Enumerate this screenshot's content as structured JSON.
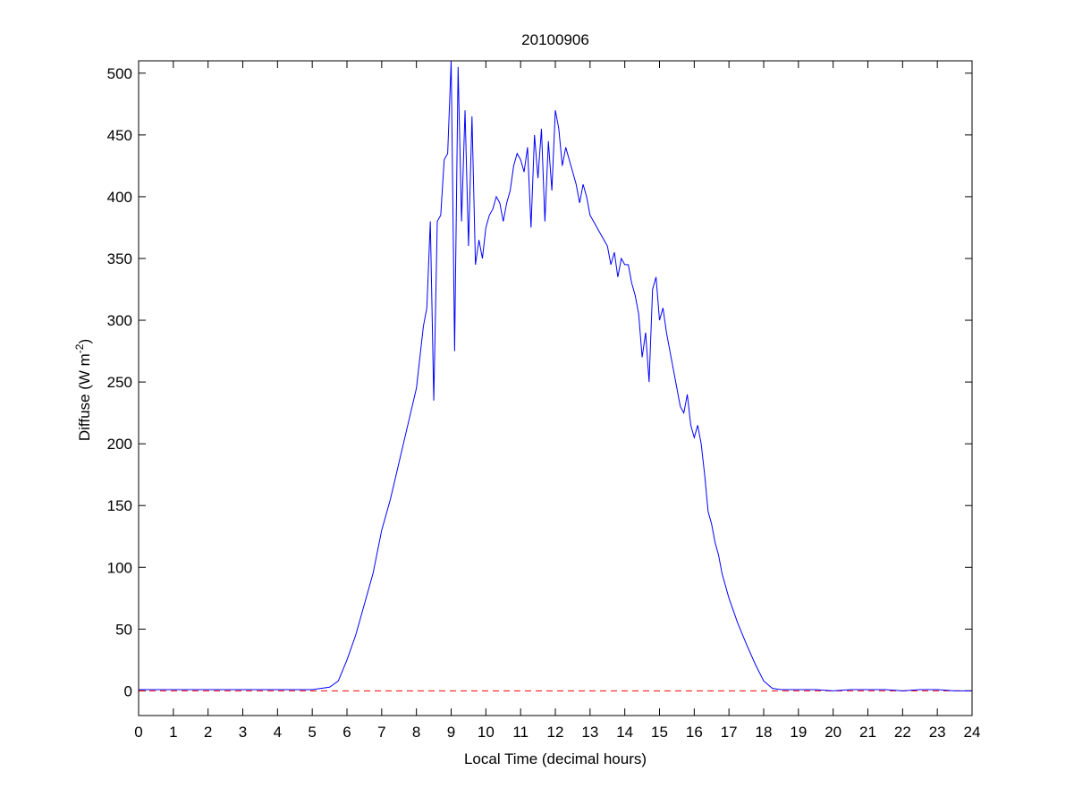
{
  "chart_data": {
    "type": "line",
    "title": "20100906",
    "xlabel": "Local Time (decimal hours)",
    "ylabel": {
      "text": "Diffuse (W m",
      "superscript": "-2",
      "suffix": ")"
    },
    "x": [
      0,
      0.5,
      1,
      1.5,
      2,
      2.5,
      3,
      3.5,
      4,
      4.5,
      5,
      5.5,
      5.75,
      6,
      6.25,
      6.5,
      6.75,
      7,
      7.25,
      7.5,
      7.75,
      8,
      8.1,
      8.2,
      8.3,
      8.4,
      8.5,
      8.6,
      8.7,
      8.8,
      8.9,
      9,
      9.1,
      9.2,
      9.3,
      9.4,
      9.5,
      9.6,
      9.7,
      9.8,
      9.9,
      10,
      10.1,
      10.2,
      10.3,
      10.4,
      10.5,
      10.6,
      10.7,
      10.8,
      10.9,
      11,
      11.1,
      11.2,
      11.3,
      11.4,
      11.5,
      11.6,
      11.7,
      11.8,
      11.9,
      12,
      12.1,
      12.2,
      12.3,
      12.4,
      12.5,
      12.6,
      12.7,
      12.8,
      12.9,
      13,
      13.1,
      13.2,
      13.3,
      13.4,
      13.5,
      13.6,
      13.7,
      13.8,
      13.9,
      14,
      14.1,
      14.2,
      14.3,
      14.4,
      14.5,
      14.6,
      14.7,
      14.8,
      14.9,
      15,
      15.1,
      15.2,
      15.3,
      15.4,
      15.5,
      15.6,
      15.7,
      15.8,
      15.9,
      16,
      16.1,
      16.2,
      16.3,
      16.4,
      16.5,
      16.6,
      16.7,
      16.8,
      16.9,
      17,
      17.25,
      17.5,
      17.75,
      18,
      18.25,
      18.5,
      19,
      19.5,
      20,
      20.5,
      21,
      21.5,
      22,
      22.5,
      23,
      23.5,
      24
    ],
    "series": [
      {
        "color": "#0000ff",
        "values": [
          1,
          1,
          1,
          1,
          1,
          1,
          1,
          1,
          1,
          1,
          1,
          3,
          8,
          25,
          45,
          70,
          95,
          130,
          155,
          185,
          215,
          245,
          270,
          295,
          310,
          380,
          235,
          380,
          385,
          430,
          435,
          510,
          275,
          505,
          380,
          470,
          360,
          465,
          345,
          365,
          350,
          375,
          385,
          390,
          400,
          395,
          380,
          395,
          405,
          425,
          435,
          430,
          420,
          440,
          375,
          450,
          415,
          455,
          380,
          445,
          405,
          470,
          455,
          425,
          440,
          430,
          420,
          410,
          395,
          410,
          400,
          385,
          380,
          375,
          370,
          365,
          360,
          345,
          355,
          335,
          350,
          345,
          345,
          330,
          320,
          305,
          270,
          290,
          250,
          325,
          335,
          300,
          310,
          290,
          275,
          260,
          245,
          230,
          225,
          240,
          215,
          205,
          215,
          200,
          175,
          145,
          135,
          120,
          110,
          95,
          85,
          75,
          55,
          38,
          22,
          8,
          2,
          1,
          1,
          1,
          0,
          1,
          1,
          1,
          0,
          1,
          1,
          0,
          0
        ]
      }
    ],
    "reference_line": {
      "value": 0,
      "color": "#ff0000",
      "style": "dashed"
    },
    "xlim": [
      0,
      24
    ],
    "ylim": [
      -20,
      510
    ],
    "xticks": [
      0,
      1,
      2,
      3,
      4,
      5,
      6,
      7,
      8,
      9,
      10,
      11,
      12,
      13,
      14,
      15,
      16,
      17,
      18,
      19,
      20,
      21,
      22,
      23,
      24
    ],
    "yticks": [
      0,
      50,
      100,
      150,
      200,
      250,
      300,
      350,
      400,
      450,
      500
    ]
  }
}
